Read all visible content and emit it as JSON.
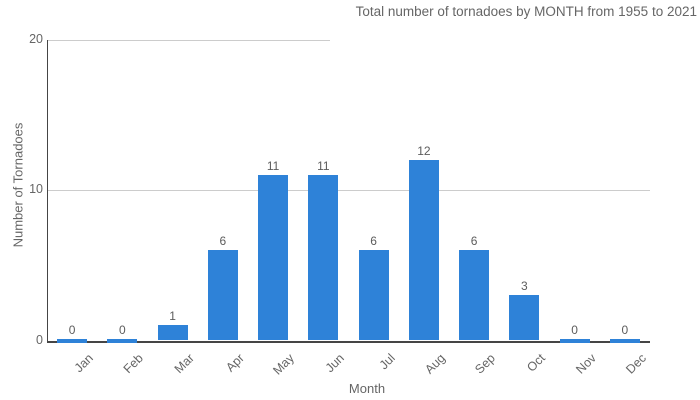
{
  "chart_data": {
    "type": "bar",
    "title": "Total number of tornadoes by MONTH from 1955 to 2021",
    "xlabel": "Month",
    "ylabel": "Number of Tornadoes",
    "categories": [
      "Jan",
      "Feb",
      "Mar",
      "Apr",
      "May",
      "Jun",
      "Jul",
      "Aug",
      "Sep",
      "Oct",
      "Nov",
      "Dec"
    ],
    "values": [
      0,
      0,
      1,
      6,
      11,
      11,
      6,
      12,
      6,
      3,
      0,
      0
    ],
    "ylim": [
      0,
      20
    ],
    "yticks": [
      0,
      10,
      20
    ],
    "grid": "horizontal",
    "legend": "none",
    "value_labels_shown": true,
    "bar_color": "#2E82D8"
  },
  "colors": {
    "bar": "#2E82D8",
    "text": "#666666",
    "axis_line": "#454545",
    "grid_line": "#cccccc",
    "background": "#ffffff"
  }
}
